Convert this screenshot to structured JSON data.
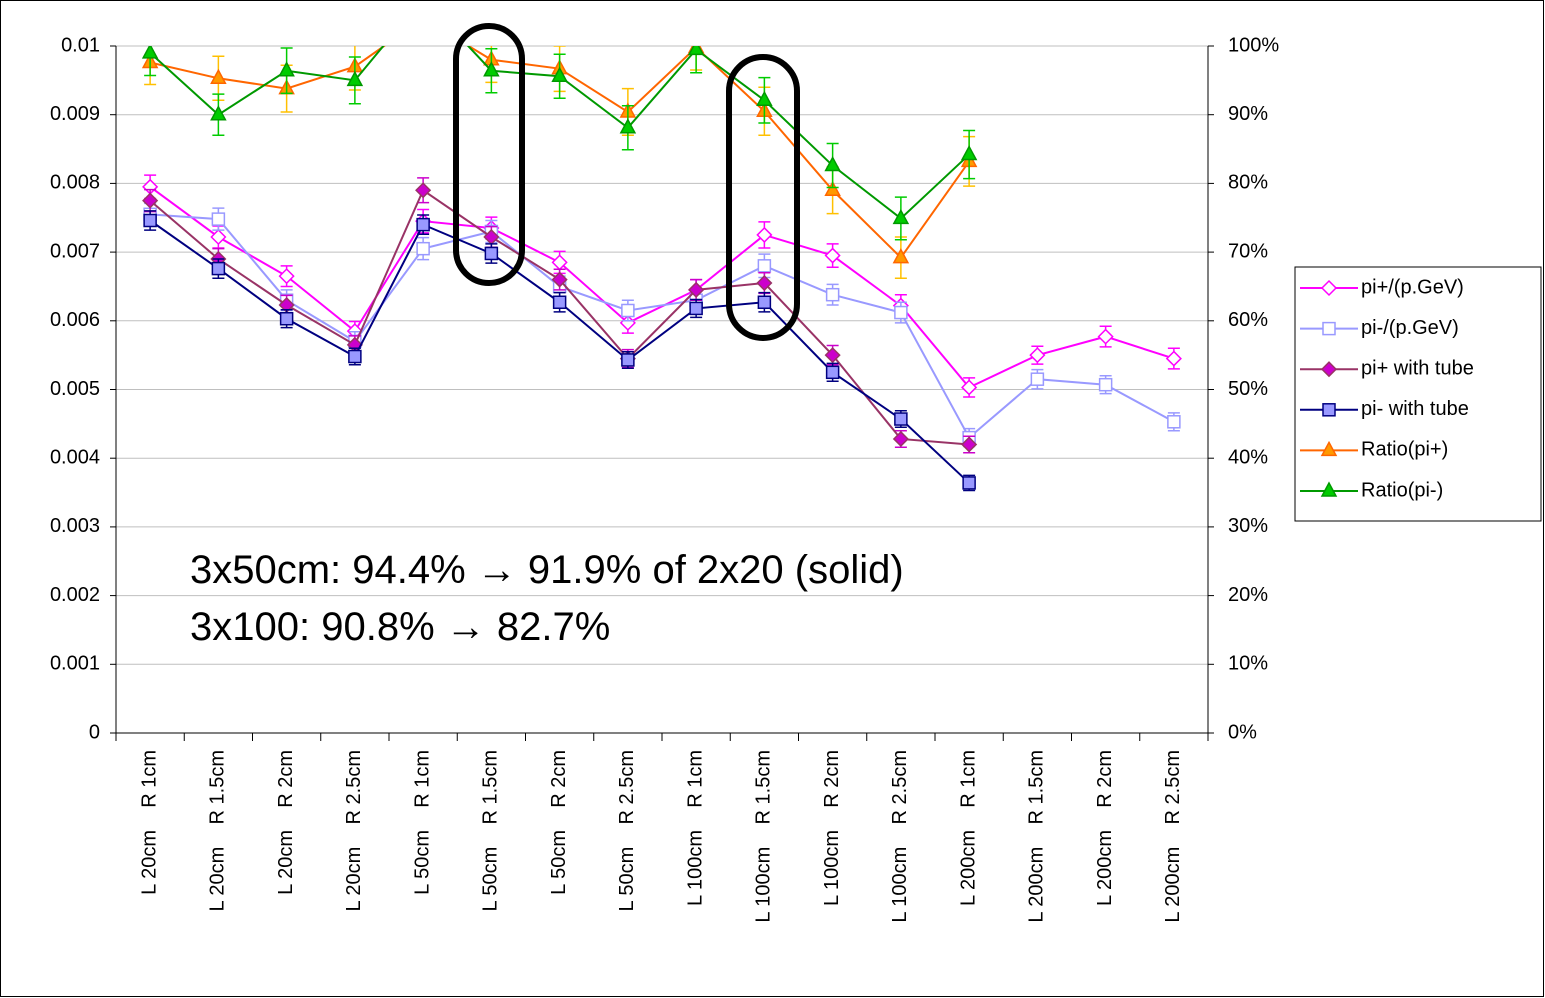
{
  "chart_data": {
    "type": "line",
    "categories": [
      "L 20cm    R 1cm",
      "L 20cm    R 1.5cm",
      "L 20cm    R 2cm",
      "L 20cm    R 2.5cm",
      "L 50cm    R 1cm",
      "L 50cm    R 1.5cm",
      "L 50cm    R 2cm",
      "L 50cm    R 2.5cm",
      "L 100cm    R 1cm",
      "L 100cm    R 1.5cm",
      "L 100cm    R 2cm",
      "L 100cm    R 2.5cm",
      "L 200cm    R 1cm",
      "L 200cm    R 1.5cm",
      "L 200cm    R 2cm",
      "L 200cm    R 2.5cm"
    ],
    "ylim": [
      0,
      0.01
    ],
    "yticks": [
      0,
      0.001,
      0.002,
      0.003,
      0.004,
      0.005,
      0.006,
      0.007,
      0.008,
      0.009,
      0.01
    ],
    "y2lim": [
      0,
      100
    ],
    "y2ticks": [
      {
        "value": 0,
        "label": "0%"
      },
      {
        "value": 10,
        "label": "10%"
      },
      {
        "value": 20,
        "label": "20%"
      },
      {
        "value": 30,
        "label": "30%"
      },
      {
        "value": 40,
        "label": "40%"
      },
      {
        "value": 50,
        "label": "50%"
      },
      {
        "value": 60,
        "label": "60%"
      },
      {
        "value": 70,
        "label": "70%"
      },
      {
        "value": 80,
        "label": "80%"
      },
      {
        "value": 90,
        "label": "90%"
      },
      {
        "value": 100,
        "label": "100%"
      }
    ],
    "grid": true,
    "legend": "right",
    "annotations": [
      "3x50cm: 94.4% → 91.9% of 2x20 (solid)",
      "3x100: 90.8% → 82.7%"
    ],
    "series": [
      {
        "name": "pi+/(p.GeV)",
        "color": "#ff00ff",
        "marker": "diamond",
        "marker_fill": "#ffffff",
        "error_color": "#ff00ff",
        "values": [
          0.00795,
          0.00722,
          0.00665,
          0.00585,
          0.00745,
          0.00735,
          0.00685,
          0.00597,
          0.00645,
          0.00725,
          0.00695,
          0.00622,
          0.00503,
          0.0055,
          0.00577,
          0.00545
        ],
        "errors": [
          0.00017,
          0.00016,
          0.00015,
          0.00014,
          0.00017,
          0.00016,
          0.00016,
          0.00015,
          0.00015,
          0.00019,
          0.00017,
          0.00016,
          0.00014,
          0.00013,
          0.00015,
          0.00015
        ]
      },
      {
        "name": "pi-/(p.GeV)",
        "color": "#9999ff",
        "marker": "square",
        "marker_fill": "#ffffff",
        "error_color": "#9999ff",
        "values": [
          0.00755,
          0.00748,
          0.0063,
          0.0057,
          0.00705,
          0.0073,
          0.0065,
          0.00615,
          0.0063,
          0.0068,
          0.00638,
          0.00612,
          0.0043,
          0.00515,
          0.00507,
          0.00453
        ],
        "errors": [
          0.00016,
          0.00016,
          0.00015,
          0.00014,
          0.00016,
          0.00016,
          0.00015,
          0.00015,
          0.00015,
          0.00017,
          0.00015,
          0.00015,
          0.00013,
          0.00014,
          0.00013,
          0.00013
        ]
      },
      {
        "name": "pi+ with tube",
        "color": "#993366",
        "marker": "diamond",
        "marker_fill": "#cc00cc",
        "error_color": "#cc00cc",
        "values": [
          0.00775,
          0.0069,
          0.00623,
          0.00565,
          0.0079,
          0.00722,
          0.0066,
          0.00545,
          0.00645,
          0.00655,
          0.0055,
          0.00428,
          0.0042,
          null,
          null,
          null
        ],
        "errors": [
          0.00016,
          0.00015,
          0.00014,
          0.00013,
          0.00018,
          0.00015,
          0.00015,
          0.00013,
          0.00015,
          0.00015,
          0.00014,
          0.00012,
          0.00012,
          null,
          null,
          null
        ]
      },
      {
        "name": "pi- with tube",
        "color": "#000080",
        "marker": "square",
        "marker_fill": "#9999ff",
        "error_color": "#000080",
        "values": [
          0.00746,
          0.00676,
          0.00603,
          0.00548,
          0.0074,
          0.00698,
          0.00627,
          0.00543,
          0.00618,
          0.00627,
          0.00525,
          0.00457,
          0.00364,
          null,
          null,
          null
        ],
        "errors": [
          0.00014,
          0.00014,
          0.00013,
          0.00012,
          0.00014,
          0.00014,
          0.00014,
          0.00012,
          0.00013,
          0.00014,
          0.00013,
          0.00012,
          0.00011,
          null,
          null,
          null
        ]
      },
      {
        "name": "Ratio(pi+)",
        "color": "#ff6600",
        "marker": "triangle",
        "marker_fill": "#ff9900",
        "error_color": "#ffc000",
        "axis": "y2",
        "values": [
          97.6,
          95.3,
          93.8,
          97,
          104,
          98,
          96.7,
          90.4,
          99.8,
          90.5,
          79,
          69.2,
          83.2,
          null,
          null,
          null
        ],
        "errors": [
          3.2,
          3.2,
          3.4,
          3.4,
          3.5,
          3.3,
          3.3,
          3.4,
          3.3,
          3.5,
          3.4,
          3,
          3.6,
          null,
          null,
          null
        ]
      },
      {
        "name": "Ratio(pi-)",
        "color": "#009900",
        "marker": "triangle",
        "marker_fill": "#00cc00",
        "error_color": "#00cc00",
        "axis": "y2",
        "values": [
          99,
          90,
          96.4,
          95,
          107,
          96.4,
          95.6,
          88.1,
          99.5,
          92.1,
          82.6,
          74.9,
          84.2,
          null,
          null,
          null
        ],
        "errors": [
          3.3,
          3,
          3.3,
          3.4,
          3.5,
          3.2,
          3.2,
          3.2,
          3.4,
          3.3,
          3.2,
          3.1,
          3.5,
          null,
          null,
          null
        ]
      }
    ]
  }
}
